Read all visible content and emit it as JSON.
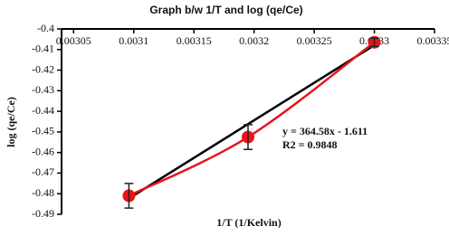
{
  "chart_data": {
    "type": "scatter",
    "title": "Graph b/w 1/T and log (qe/Ce)",
    "xlabel": "1/T (1/Kelvin)",
    "ylabel": "log (qe/Ce)",
    "series": [
      {
        "x": [
          0.003096,
          0.003195,
          0.0033
        ],
        "values": [
          -0.481,
          -0.4525,
          -0.4065
        ],
        "errors": [
          0.006,
          0.006,
          0.002
        ],
        "color": "#e8141b"
      }
    ],
    "trendline": {
      "x": [
        0.003096,
        0.0033
      ],
      "values": [
        -0.4823,
        -0.4079
      ],
      "color": "#000000"
    },
    "annotations": [
      "y = 364.58x - 1.611",
      "R2 = 0.9848"
    ],
    "xlim": [
      0.00304,
      0.00335
    ],
    "xticks": [
      0.00305,
      0.0031,
      0.00315,
      0.0032,
      0.00325,
      0.0033,
      0.00335
    ],
    "ylim": [
      -0.4,
      -0.49
    ],
    "yticks": [
      -0.4,
      -0.41,
      -0.42,
      -0.43,
      -0.44,
      -0.45,
      -0.46,
      -0.47,
      -0.48,
      -0.49
    ]
  }
}
